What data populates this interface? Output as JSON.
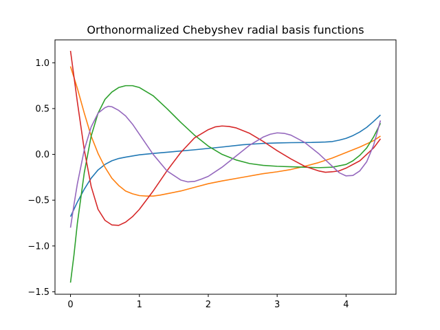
{
  "chart_data": {
    "type": "line",
    "title": "Orthonormalized Chebyshev radial basis functions",
    "xlabel": "",
    "ylabel": "",
    "xlim": [
      -0.225,
      4.725
    ],
    "ylim": [
      -1.527,
      1.25
    ],
    "xticks": [
      0,
      1,
      2,
      3,
      4
    ],
    "xtick_labels": [
      "0",
      "1",
      "2",
      "3",
      "4"
    ],
    "yticks": [
      1.0,
      0.5,
      0.0,
      -0.5,
      -1.0,
      -1.5
    ],
    "ytick_labels": [
      "1.0",
      "0.5",
      "0.0",
      "−0.5",
      "−1.0",
      "−1.5"
    ],
    "grid": false,
    "legend": false,
    "series": [
      {
        "color": "#1f77b4",
        "x": [
          0,
          0.05,
          0.1,
          0.2,
          0.3,
          0.4,
          0.5,
          0.6,
          0.7,
          0.8,
          1.0,
          1.2,
          1.5,
          1.8,
          2.0,
          2.2,
          2.5,
          2.8,
          3.0,
          3.2,
          3.5,
          3.7,
          3.8,
          3.9,
          4.0,
          4.1,
          4.2,
          4.3,
          4.4,
          4.5
        ],
        "y": [
          -0.68,
          -0.6,
          -0.52,
          -0.38,
          -0.26,
          -0.17,
          -0.11,
          -0.07,
          -0.045,
          -0.03,
          -0.005,
          0.01,
          0.03,
          0.05,
          0.065,
          0.08,
          0.105,
          0.12,
          0.125,
          0.128,
          0.13,
          0.135,
          0.14,
          0.155,
          0.175,
          0.205,
          0.245,
          0.295,
          0.36,
          0.43
        ]
      },
      {
        "color": "#ff7f0e",
        "x": [
          0,
          0.1,
          0.2,
          0.3,
          0.4,
          0.5,
          0.6,
          0.7,
          0.8,
          0.9,
          1.0,
          1.1,
          1.2,
          1.3,
          1.4,
          1.6,
          1.8,
          2.0,
          2.2,
          2.5,
          2.8,
          3.0,
          3.2,
          3.4,
          3.6,
          3.8,
          4.0,
          4.2,
          4.4,
          4.5
        ],
        "y": [
          0.96,
          0.72,
          0.45,
          0.2,
          0.01,
          -0.14,
          -0.26,
          -0.34,
          -0.4,
          -0.43,
          -0.45,
          -0.455,
          -0.455,
          -0.445,
          -0.43,
          -0.4,
          -0.36,
          -0.32,
          -0.29,
          -0.25,
          -0.21,
          -0.19,
          -0.165,
          -0.13,
          -0.09,
          -0.04,
          0.02,
          0.08,
          0.15,
          0.2
        ]
      },
      {
        "color": "#2ca02c",
        "x": [
          0,
          0.05,
          0.1,
          0.2,
          0.3,
          0.4,
          0.5,
          0.6,
          0.7,
          0.8,
          0.9,
          1.0,
          1.2,
          1.4,
          1.6,
          1.8,
          2.0,
          2.2,
          2.4,
          2.6,
          2.8,
          3.0,
          3.2,
          3.4,
          3.6,
          3.8,
          4.0,
          4.1,
          4.2,
          4.3,
          4.4,
          4.5
        ],
        "y": [
          -1.4,
          -1.1,
          -0.75,
          -0.2,
          0.2,
          0.45,
          0.6,
          0.68,
          0.73,
          0.75,
          0.75,
          0.73,
          0.64,
          0.5,
          0.35,
          0.21,
          0.09,
          0.0,
          -0.06,
          -0.1,
          -0.12,
          -0.13,
          -0.135,
          -0.14,
          -0.145,
          -0.14,
          -0.11,
          -0.07,
          -0.01,
          0.07,
          0.19,
          0.34
        ]
      },
      {
        "color": "#d62728",
        "x": [
          0,
          0.05,
          0.1,
          0.2,
          0.3,
          0.4,
          0.5,
          0.6,
          0.7,
          0.8,
          0.9,
          1.0,
          1.2,
          1.4,
          1.6,
          1.8,
          2.0,
          2.1,
          2.2,
          2.3,
          2.4,
          2.6,
          2.8,
          3.0,
          3.2,
          3.4,
          3.6,
          3.7,
          3.8,
          3.9,
          4.0,
          4.2,
          4.4,
          4.5
        ],
        "y": [
          1.13,
          0.85,
          0.57,
          0.05,
          -0.35,
          -0.6,
          -0.72,
          -0.77,
          -0.775,
          -0.74,
          -0.68,
          -0.6,
          -0.4,
          -0.18,
          0.02,
          0.18,
          0.27,
          0.3,
          0.31,
          0.305,
          0.29,
          0.23,
          0.14,
          0.04,
          -0.05,
          -0.13,
          -0.18,
          -0.195,
          -0.19,
          -0.18,
          -0.15,
          -0.07,
          0.07,
          0.17
        ]
      },
      {
        "color": "#9467bd",
        "x": [
          0,
          0.05,
          0.1,
          0.2,
          0.3,
          0.4,
          0.5,
          0.55,
          0.6,
          0.7,
          0.8,
          0.9,
          1.0,
          1.2,
          1.4,
          1.6,
          1.7,
          1.8,
          1.9,
          2.0,
          2.2,
          2.4,
          2.6,
          2.8,
          2.9,
          3.0,
          3.1,
          3.2,
          3.4,
          3.6,
          3.8,
          3.9,
          4.0,
          4.1,
          4.2,
          4.3,
          4.4,
          4.5
        ],
        "y": [
          -0.8,
          -0.55,
          -0.32,
          0.05,
          0.3,
          0.45,
          0.51,
          0.525,
          0.52,
          0.48,
          0.42,
          0.33,
          0.22,
          0.0,
          -0.18,
          -0.28,
          -0.3,
          -0.295,
          -0.27,
          -0.24,
          -0.14,
          -0.02,
          0.1,
          0.19,
          0.22,
          0.235,
          0.23,
          0.21,
          0.13,
          0.01,
          -0.13,
          -0.2,
          -0.235,
          -0.23,
          -0.18,
          -0.08,
          0.1,
          0.37
        ]
      }
    ]
  }
}
